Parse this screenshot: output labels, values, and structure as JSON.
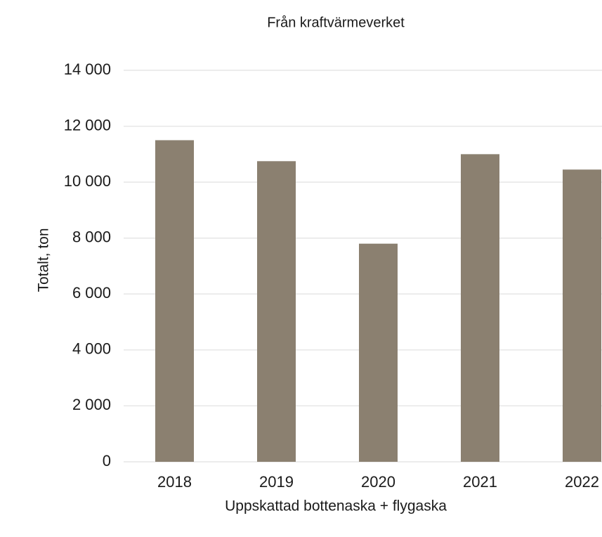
{
  "chart_data": {
    "type": "bar",
    "subtitle": "Från kraftvärmeverket",
    "x_label": "Uppskattad bottenaska + flygaska",
    "y_label": "Totalt, ton",
    "categories": [
      "2018",
      "2019",
      "2020",
      "2021",
      "2022"
    ],
    "values": [
      11500,
      10750,
      7800,
      11000,
      10450
    ],
    "color": "#8b8070",
    "ylim": [
      0,
      14000
    ],
    "yticks": [
      0,
      {
        "value": 2000,
        "label": "2 000"
      },
      {
        "value": 4000,
        "label": "4 000"
      },
      {
        "value": 6000,
        "label": "6 000"
      },
      {
        "value": 8000,
        "label": "8 000"
      },
      {
        "value": 10000,
        "label": "10 000"
      },
      {
        "value": 12000,
        "label": "12 000"
      },
      {
        "value": 14000,
        "label": "14 000"
      }
    ],
    "grid": true
  }
}
